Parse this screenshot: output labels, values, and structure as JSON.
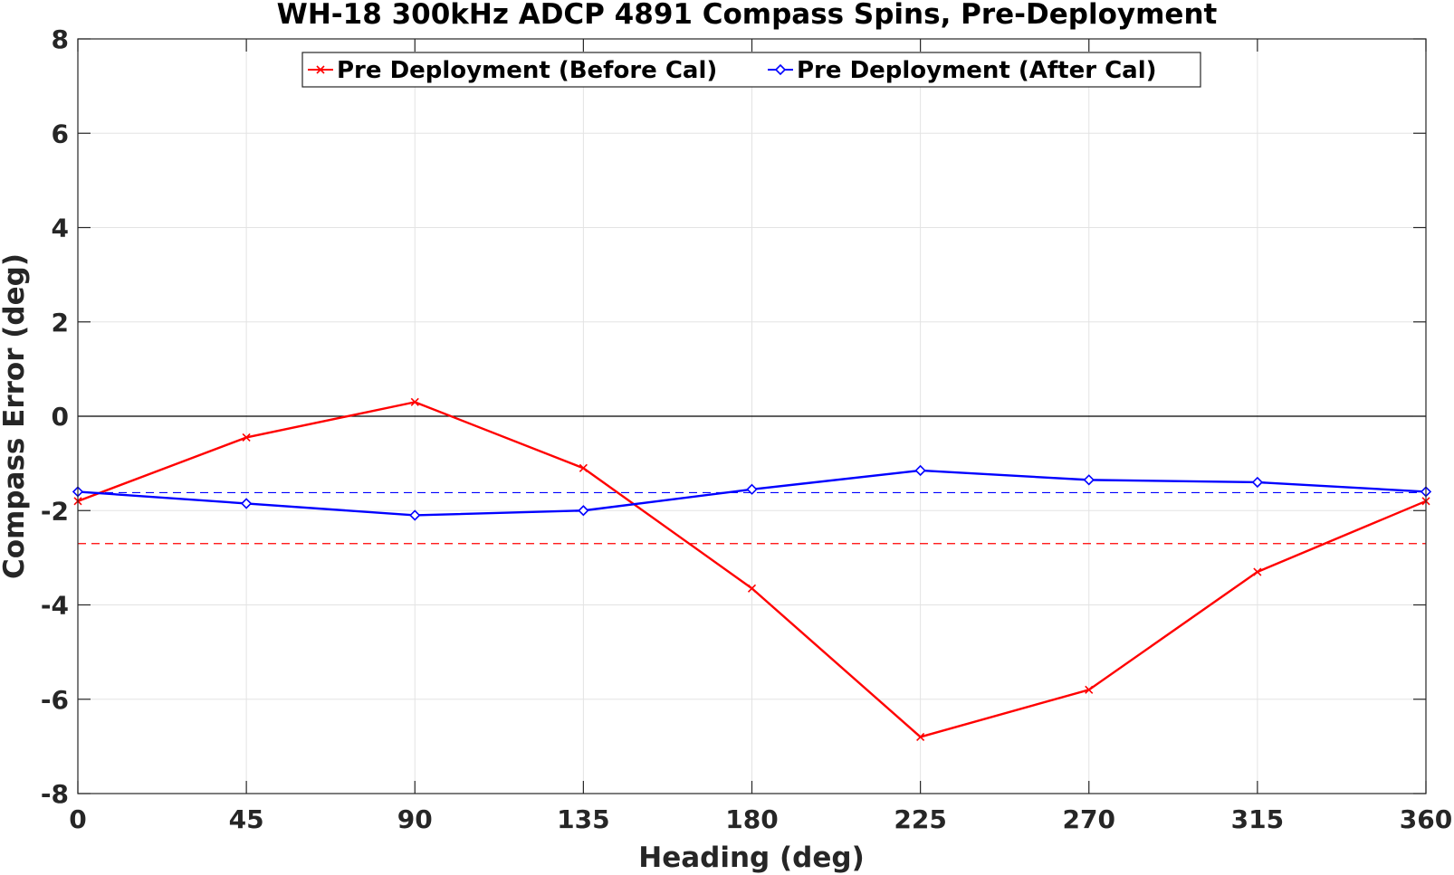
{
  "chart_data": {
    "type": "line",
    "title": "WH-18 300kHz ADCP 4891 Compass Spins, Pre-Deployment",
    "xlabel": "Heading (deg)",
    "ylabel": "Compass Error (deg)",
    "xlim": [
      0,
      360
    ],
    "ylim": [
      -8,
      8
    ],
    "xticks": [
      0,
      45,
      90,
      135,
      180,
      225,
      270,
      315,
      360
    ],
    "yticks": [
      -8,
      -6,
      -4,
      -2,
      0,
      2,
      4,
      6,
      8
    ],
    "xtick_labels": [
      "0",
      "45",
      "90",
      "135",
      "180",
      "225",
      "270",
      "315",
      "360"
    ],
    "ytick_labels": [
      "-8",
      "-6",
      "-4",
      "-2",
      "0",
      "2",
      "4",
      "6",
      "8"
    ],
    "grid": true,
    "legend_position": "top-center",
    "zero_line": 0,
    "series": [
      {
        "name": "Pre Deployment (Before Cal)",
        "color": "#ff0000",
        "marker": "x",
        "x": [
          0,
          45,
          90,
          135,
          180,
          225,
          270,
          315,
          360
        ],
        "y": [
          -1.8,
          -0.45,
          0.3,
          -1.1,
          -3.65,
          -6.8,
          -5.8,
          -3.3,
          -1.8
        ],
        "mean_line": -2.7
      },
      {
        "name": "Pre Deployment (After Cal)",
        "color": "#0000ff",
        "marker": "diamond",
        "x": [
          0,
          45,
          90,
          135,
          180,
          225,
          270,
          315,
          360
        ],
        "y": [
          -1.6,
          -1.85,
          -2.1,
          -2.0,
          -1.55,
          -1.15,
          -1.35,
          -1.4,
          -1.6
        ],
        "mean_line": -1.62
      }
    ]
  }
}
